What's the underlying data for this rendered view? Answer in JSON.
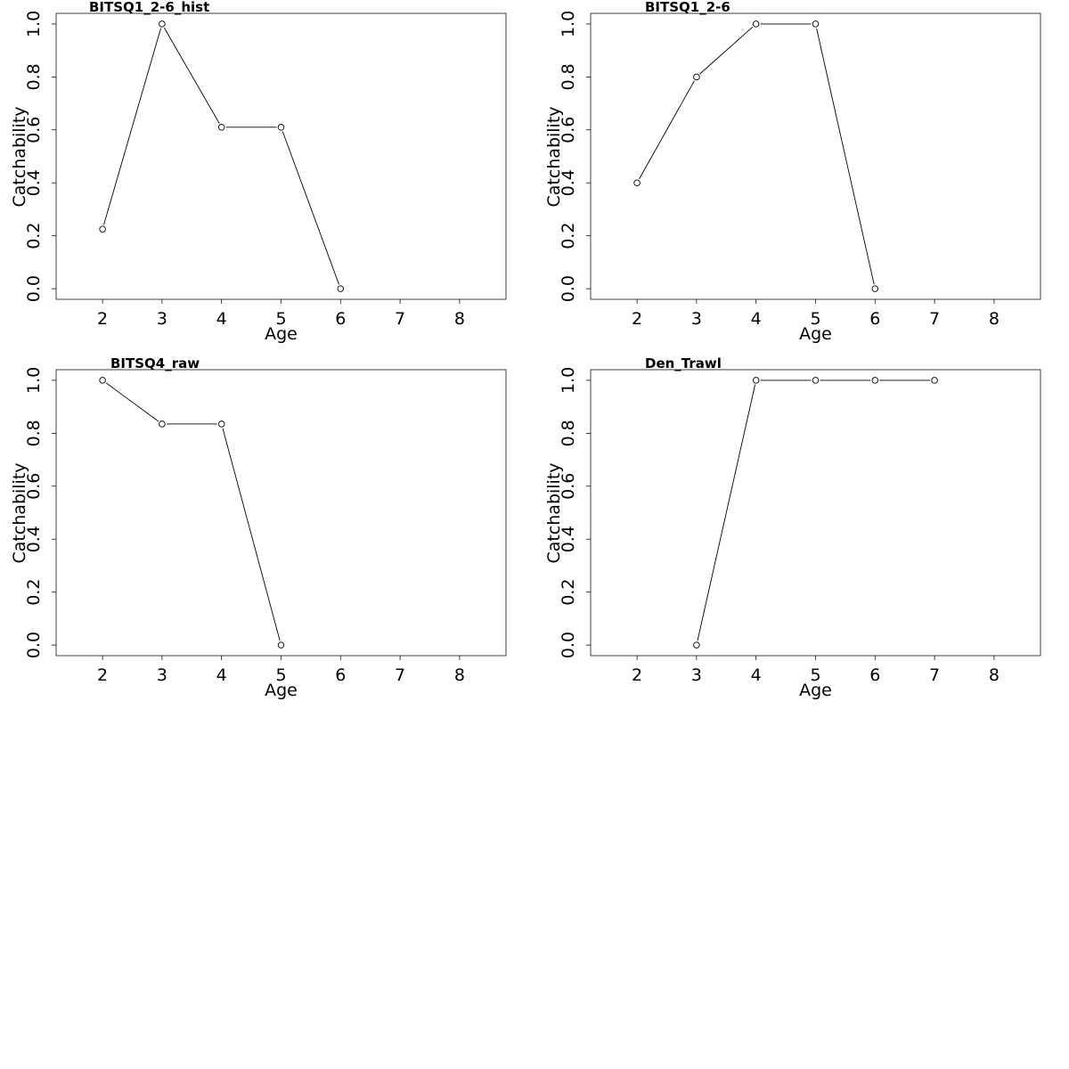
{
  "chart_data": [
    {
      "type": "line",
      "title": "BITSQ1_2-6_hist",
      "xlabel": "Age",
      "ylabel": "Catchability",
      "xlim": [
        1.22,
        8.78
      ],
      "ylim": [
        -0.04,
        1.04
      ],
      "xticks": [
        2,
        3,
        4,
        5,
        6,
        7,
        8
      ],
      "yticks": [
        0.0,
        0.2,
        0.4,
        0.6,
        0.8,
        1.0
      ],
      "ytick_labels": [
        "0.0",
        "0.2",
        "0.4",
        "0.6",
        "0.8",
        "1.0"
      ],
      "grid": false,
      "markers": "open-circle",
      "x": [
        2,
        3,
        4,
        5,
        6
      ],
      "y": [
        0.225,
        1.0,
        0.61,
        0.61,
        0.0
      ]
    },
    {
      "type": "line",
      "title": "BITSQ1_2-6",
      "xlabel": "Age",
      "ylabel": "Catchability",
      "xlim": [
        1.22,
        8.78
      ],
      "ylim": [
        -0.04,
        1.04
      ],
      "xticks": [
        2,
        3,
        4,
        5,
        6,
        7,
        8
      ],
      "yticks": [
        0.0,
        0.2,
        0.4,
        0.6,
        0.8,
        1.0
      ],
      "ytick_labels": [
        "0.0",
        "0.2",
        "0.4",
        "0.6",
        "0.8",
        "1.0"
      ],
      "grid": false,
      "markers": "open-circle",
      "x": [
        2,
        3,
        4,
        5,
        6
      ],
      "y": [
        0.4,
        0.8,
        1.0,
        1.0,
        0.0
      ]
    },
    {
      "type": "line",
      "title": "BITSQ4_raw",
      "xlabel": "Age",
      "ylabel": "Catchability",
      "xlim": [
        1.22,
        8.78
      ],
      "ylim": [
        -0.04,
        1.04
      ],
      "xticks": [
        2,
        3,
        4,
        5,
        6,
        7,
        8
      ],
      "yticks": [
        0.0,
        0.2,
        0.4,
        0.6,
        0.8,
        1.0
      ],
      "ytick_labels": [
        "0.0",
        "0.2",
        "0.4",
        "0.6",
        "0.8",
        "1.0"
      ],
      "grid": false,
      "markers": "open-circle",
      "x": [
        2,
        3,
        4,
        5
      ],
      "y": [
        1.0,
        0.835,
        0.835,
        0.0
      ]
    },
    {
      "type": "line",
      "title": "Den_Trawl",
      "xlabel": "Age",
      "ylabel": "Catchability",
      "xlim": [
        1.22,
        8.78
      ],
      "ylim": [
        -0.04,
        1.04
      ],
      "xticks": [
        2,
        3,
        4,
        5,
        6,
        7,
        8
      ],
      "yticks": [
        0.0,
        0.2,
        0.4,
        0.6,
        0.8,
        1.0
      ],
      "ytick_labels": [
        "0.0",
        "0.2",
        "0.4",
        "0.6",
        "0.8",
        "1.0"
      ],
      "grid": false,
      "markers": "open-circle",
      "x": [
        3,
        4,
        5,
        6,
        7
      ],
      "y": [
        0.0,
        1.0,
        1.0,
        1.0,
        1.0
      ]
    }
  ]
}
